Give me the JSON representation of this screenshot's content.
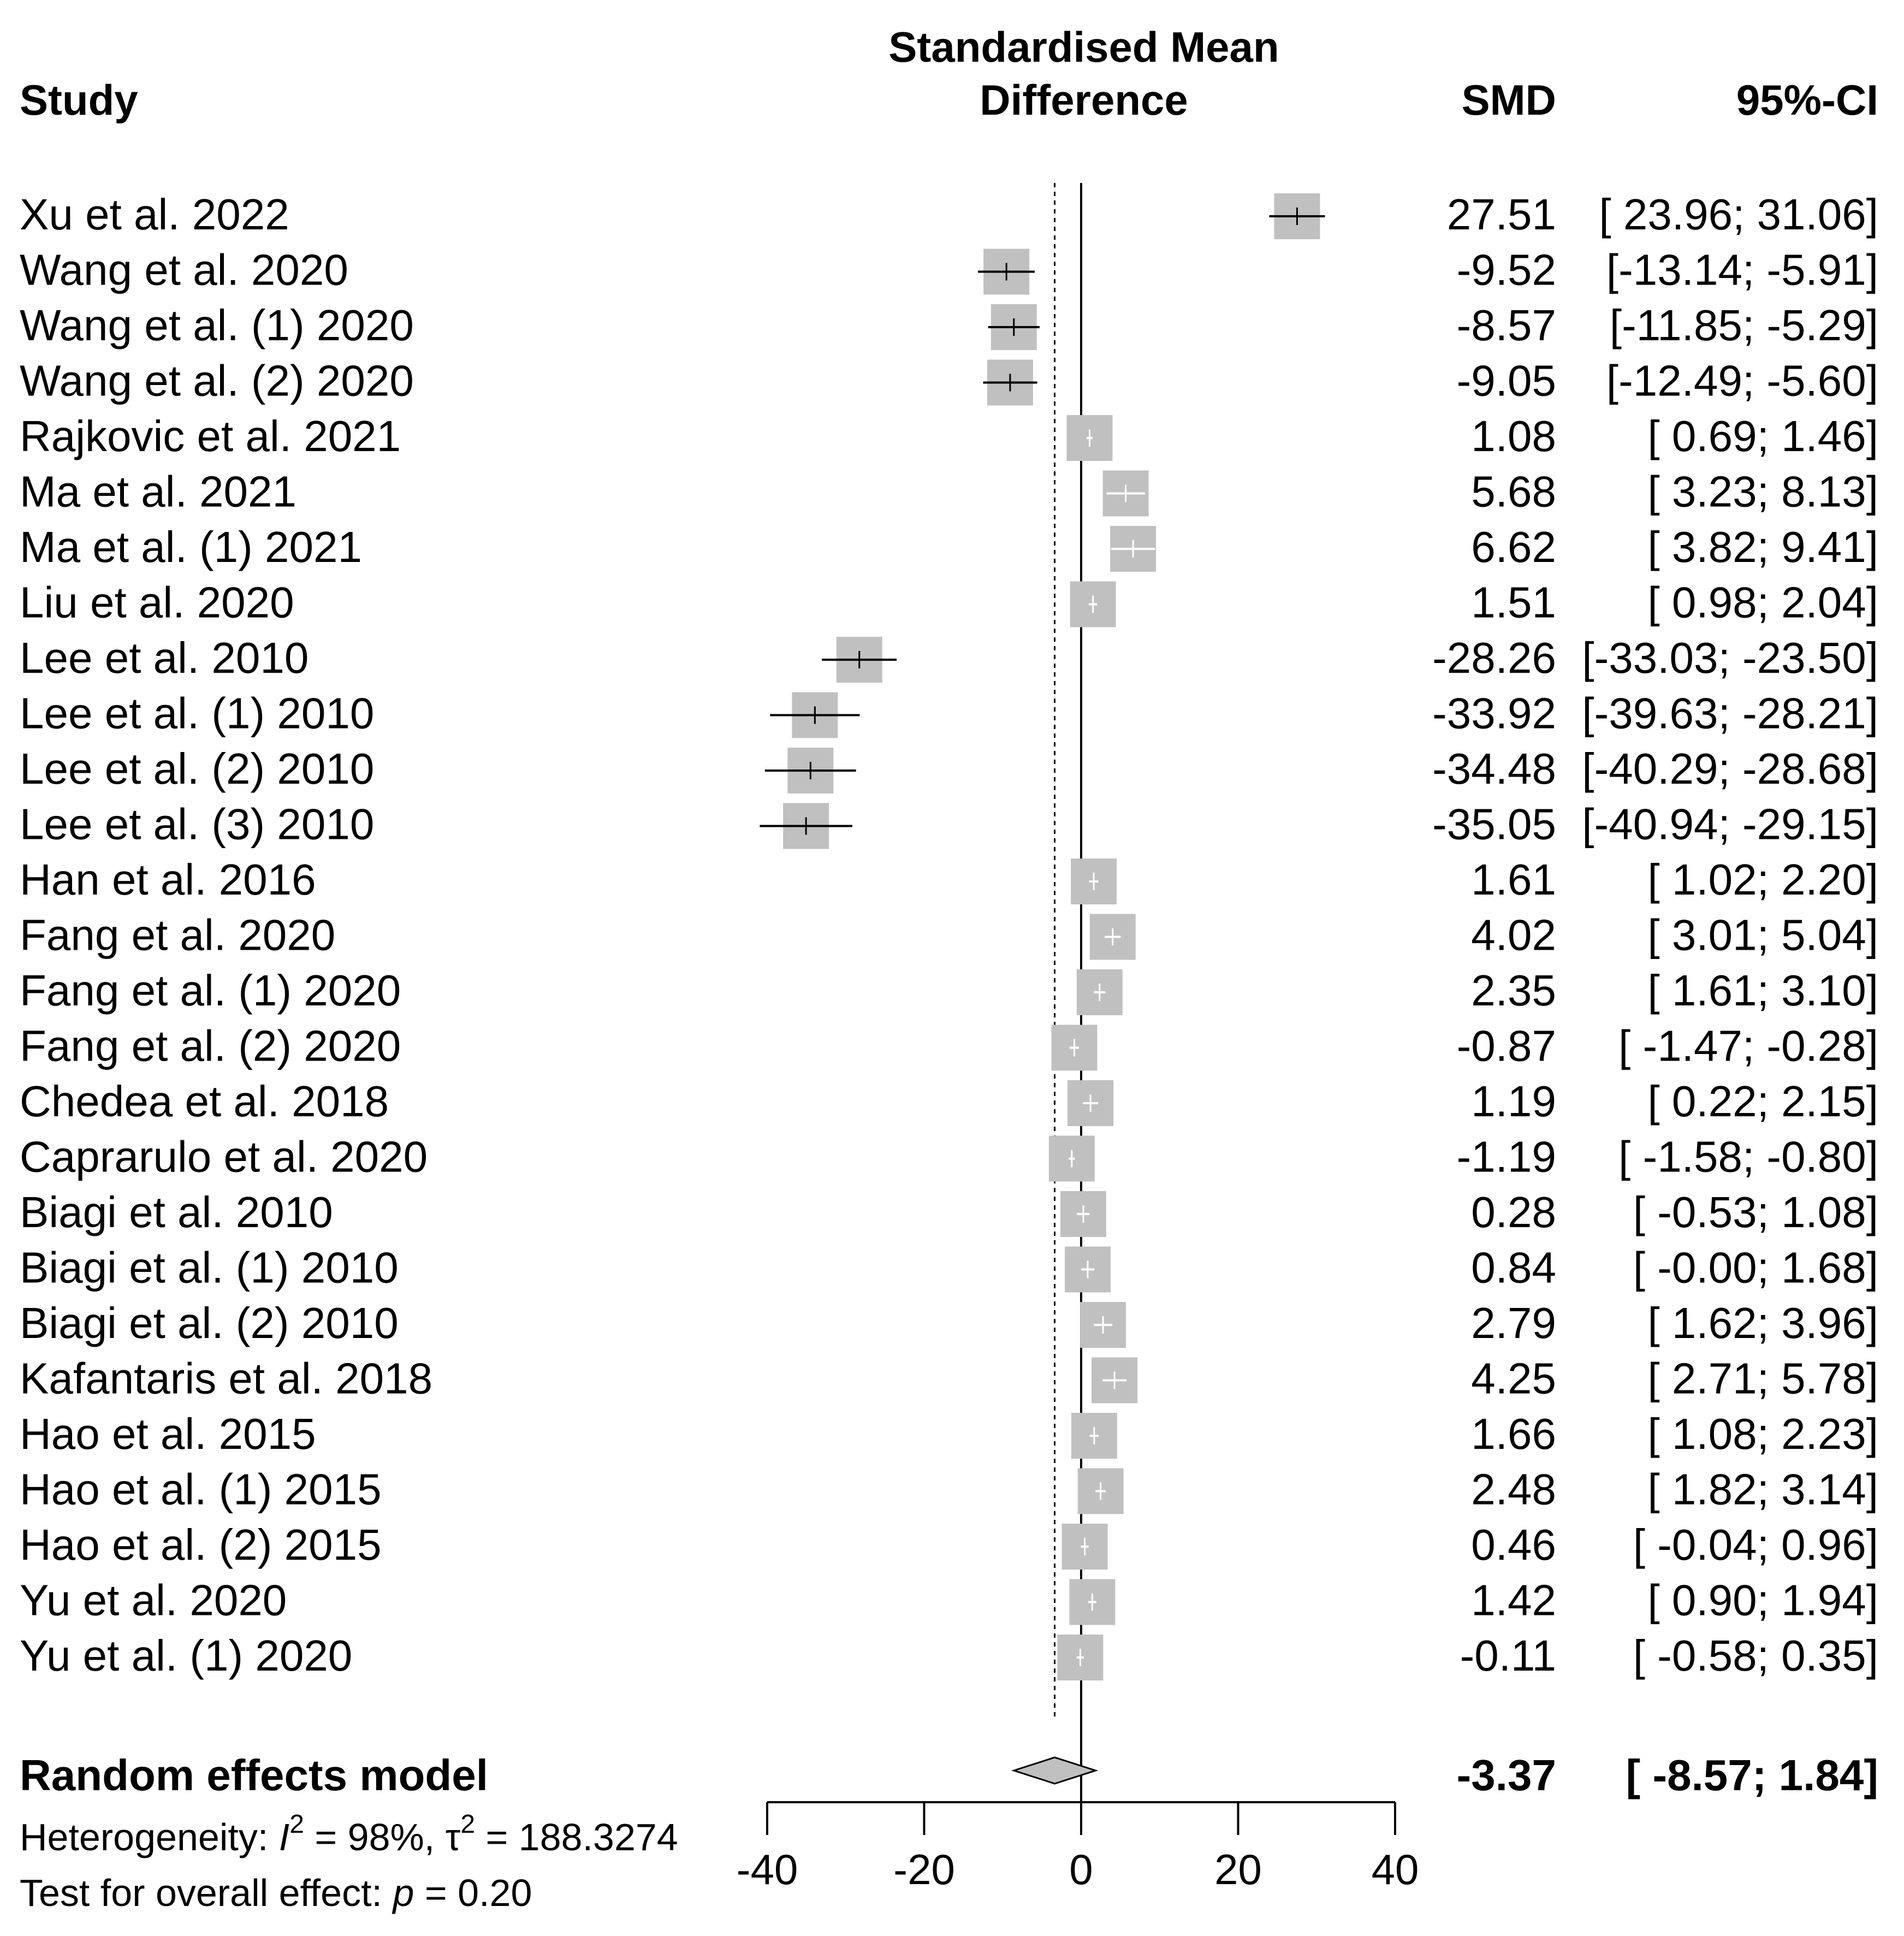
{
  "chart_data": {
    "type": "forest",
    "headers": {
      "study": "Study",
      "effect_line1": "Standardised Mean",
      "effect_line2": "Difference",
      "smd": "SMD",
      "ci": "95%-CI"
    },
    "studies": [
      {
        "label": "Xu et al. 2022",
        "smd": 27.51,
        "lo": 23.96,
        "hi": 31.06,
        "smd_text": "27.51",
        "ci_text": "[ 23.96; 31.06]"
      },
      {
        "label": "Wang et al. 2020",
        "smd": -9.52,
        "lo": -13.14,
        "hi": -5.91,
        "smd_text": "-9.52",
        "ci_text": "[-13.14; -5.91]"
      },
      {
        "label": "Wang et al. (1) 2020",
        "smd": -8.57,
        "lo": -11.85,
        "hi": -5.29,
        "smd_text": "-8.57",
        "ci_text": "[-11.85; -5.29]"
      },
      {
        "label": "Wang et al. (2) 2020",
        "smd": -9.05,
        "lo": -12.49,
        "hi": -5.6,
        "smd_text": "-9.05",
        "ci_text": "[-12.49; -5.60]"
      },
      {
        "label": "Rajkovic et al. 2021",
        "smd": 1.08,
        "lo": 0.69,
        "hi": 1.46,
        "smd_text": "1.08",
        "ci_text": "[ 0.69; 1.46]"
      },
      {
        "label": "Ma et al. 2021",
        "smd": 5.68,
        "lo": 3.23,
        "hi": 8.13,
        "smd_text": "5.68",
        "ci_text": "[ 3.23; 8.13]"
      },
      {
        "label": "Ma et al. (1) 2021",
        "smd": 6.62,
        "lo": 3.82,
        "hi": 9.41,
        "smd_text": "6.62",
        "ci_text": "[ 3.82; 9.41]"
      },
      {
        "label": "Liu et al. 2020",
        "smd": 1.51,
        "lo": 0.98,
        "hi": 2.04,
        "smd_text": "1.51",
        "ci_text": "[ 0.98; 2.04]"
      },
      {
        "label": "Lee et al. 2010",
        "smd": -28.26,
        "lo": -33.03,
        "hi": -23.5,
        "smd_text": "-28.26",
        "ci_text": "[-33.03; -23.50]"
      },
      {
        "label": "Lee et al. (1) 2010",
        "smd": -33.92,
        "lo": -39.63,
        "hi": -28.21,
        "smd_text": "-33.92",
        "ci_text": "[-39.63; -28.21]"
      },
      {
        "label": "Lee et al. (2) 2010",
        "smd": -34.48,
        "lo": -40.29,
        "hi": -28.68,
        "smd_text": "-34.48",
        "ci_text": "[-40.29; -28.68]"
      },
      {
        "label": "Lee et al. (3) 2010",
        "smd": -35.05,
        "lo": -40.94,
        "hi": -29.15,
        "smd_text": "-35.05",
        "ci_text": "[-40.94; -29.15]"
      },
      {
        "label": "Han et al. 2016",
        "smd": 1.61,
        "lo": 1.02,
        "hi": 2.2,
        "smd_text": "1.61",
        "ci_text": "[ 1.02; 2.20]"
      },
      {
        "label": "Fang et al. 2020",
        "smd": 4.02,
        "lo": 3.01,
        "hi": 5.04,
        "smd_text": "4.02",
        "ci_text": "[ 3.01; 5.04]"
      },
      {
        "label": "Fang et al. (1) 2020",
        "smd": 2.35,
        "lo": 1.61,
        "hi": 3.1,
        "smd_text": "2.35",
        "ci_text": "[ 1.61; 3.10]"
      },
      {
        "label": "Fang et al. (2) 2020",
        "smd": -0.87,
        "lo": -1.47,
        "hi": -0.28,
        "smd_text": "-0.87",
        "ci_text": "[ -1.47; -0.28]"
      },
      {
        "label": "Chedea et al. 2018",
        "smd": 1.19,
        "lo": 0.22,
        "hi": 2.15,
        "smd_text": "1.19",
        "ci_text": "[ 0.22; 2.15]"
      },
      {
        "label": "Caprarulo et al. 2020",
        "smd": -1.19,
        "lo": -1.58,
        "hi": -0.8,
        "smd_text": "-1.19",
        "ci_text": "[ -1.58; -0.80]"
      },
      {
        "label": "Biagi et al. 2010",
        "smd": 0.28,
        "lo": -0.53,
        "hi": 1.08,
        "smd_text": "0.28",
        "ci_text": "[ -0.53; 1.08]"
      },
      {
        "label": "Biagi et al. (1) 2010",
        "smd": 0.84,
        "lo": -0.0,
        "hi": 1.68,
        "smd_text": "0.84",
        "ci_text": "[ -0.00; 1.68]"
      },
      {
        "label": "Biagi et al. (2) 2010",
        "smd": 2.79,
        "lo": 1.62,
        "hi": 3.96,
        "smd_text": "2.79",
        "ci_text": "[ 1.62; 3.96]"
      },
      {
        "label": "Kafantaris et al. 2018",
        "smd": 4.25,
        "lo": 2.71,
        "hi": 5.78,
        "smd_text": "4.25",
        "ci_text": "[ 2.71; 5.78]"
      },
      {
        "label": "Hao et al. 2015",
        "smd": 1.66,
        "lo": 1.08,
        "hi": 2.23,
        "smd_text": "1.66",
        "ci_text": "[ 1.08; 2.23]"
      },
      {
        "label": "Hao et al. (1) 2015",
        "smd": 2.48,
        "lo": 1.82,
        "hi": 3.14,
        "smd_text": "2.48",
        "ci_text": "[ 1.82; 3.14]"
      },
      {
        "label": "Hao et al. (2) 2015",
        "smd": 0.46,
        "lo": -0.04,
        "hi": 0.96,
        "smd_text": "0.46",
        "ci_text": "[ -0.04; 0.96]"
      },
      {
        "label": "Yu et al. 2020",
        "smd": 1.42,
        "lo": 0.9,
        "hi": 1.94,
        "smd_text": "1.42",
        "ci_text": "[ 0.90; 1.94]"
      },
      {
        "label": "Yu et al. (1) 2020",
        "smd": -0.11,
        "lo": -0.58,
        "hi": 0.35,
        "smd_text": "-0.11",
        "ci_text": "[ -0.58; 0.35]"
      }
    ],
    "summary": {
      "label": "Random effects model",
      "smd": -3.37,
      "lo": -8.57,
      "hi": 1.84,
      "smd_text": "-3.37",
      "ci_text": "[ -8.57; 1.84]"
    },
    "heterogeneity": {
      "prefix": "Heterogeneity: ",
      "i2_symbol": "I",
      "sup": "2",
      "i2_value": " = 98%, ",
      "tau2_symbol": "τ",
      "tau2_value": " = 188.3274"
    },
    "overall_test": {
      "prefix": "Test for overall effect: ",
      "p_symbol": "p",
      "p_value": " = 0.20"
    },
    "xlim": [
      -40,
      40
    ],
    "x_ticks": [
      -40,
      -20,
      0,
      20,
      40
    ],
    "x_tick_labels": [
      "-40",
      "-20",
      "0",
      "20",
      "40"
    ],
    "reference_line": 0,
    "colors": {
      "box": "#c0c0c0",
      "diamond": "#c0c0c0",
      "line_dark": "#000000",
      "line_light": "#ffffff"
    }
  }
}
